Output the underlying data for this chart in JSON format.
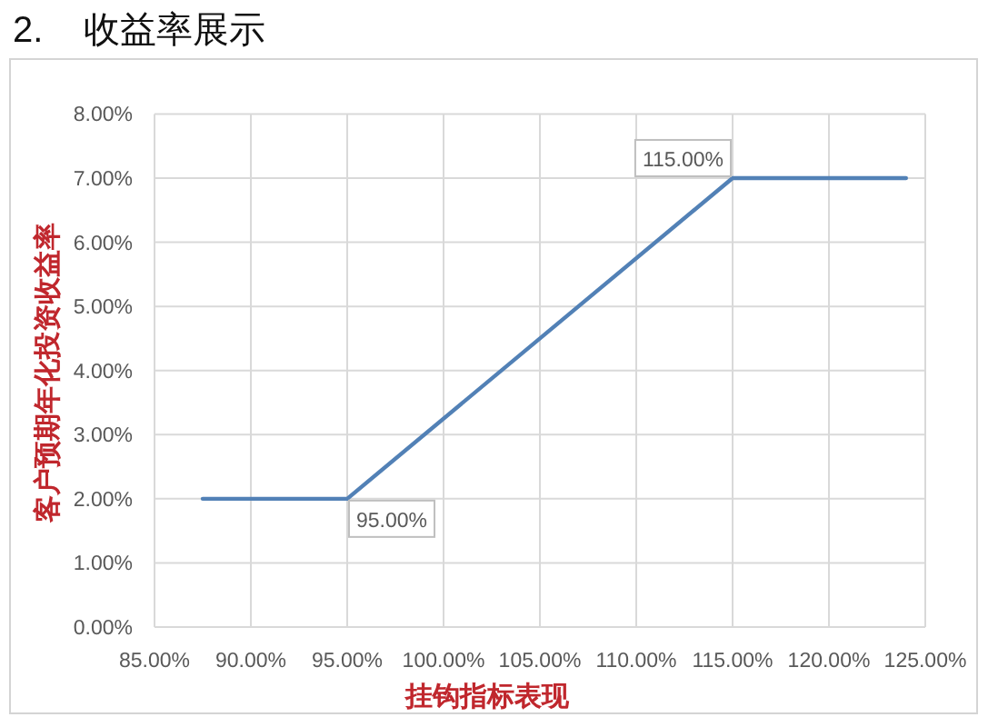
{
  "chart_data": {
    "type": "line",
    "title": "2.    收益率展示",
    "xlabel": "挂钩指标表现",
    "ylabel": "客户预期年化投资收益率",
    "x": [
      87.5,
      95,
      115,
      124
    ],
    "series": [
      {
        "color": "#5281b6",
        "values": [
          2,
          2,
          7,
          7
        ]
      }
    ],
    "xlim": [
      85,
      125
    ],
    "ylim": [
      0,
      8
    ],
    "xticks": [
      {
        "value": 85,
        "label": "85.00%"
      },
      {
        "value": 90,
        "label": "90.00%"
      },
      {
        "value": 95,
        "label": "95.00%"
      },
      {
        "value": 100,
        "label": "100.00%"
      },
      {
        "value": 105,
        "label": "105.00%"
      },
      {
        "value": 110,
        "label": "110.00%"
      },
      {
        "value": 115,
        "label": "115.00%"
      },
      {
        "value": 120,
        "label": "120.00%"
      },
      {
        "value": 125,
        "label": "125.00%"
      }
    ],
    "yticks": [
      {
        "value": 0,
        "label": "0.00%"
      },
      {
        "value": 1,
        "label": "1.00%"
      },
      {
        "value": 2,
        "label": "2.00%"
      },
      {
        "value": 3,
        "label": "3.00%"
      },
      {
        "value": 4,
        "label": "4.00%"
      },
      {
        "value": 5,
        "label": "5.00%"
      },
      {
        "value": 6,
        "label": "6.00%"
      },
      {
        "value": 7,
        "label": "7.00%"
      },
      {
        "value": 8,
        "label": "8.00%"
      }
    ],
    "grid": true,
    "line_style": "solid",
    "annotations": [
      {
        "text": "95.00%",
        "x": 95,
        "y": 2
      },
      {
        "text": "115.00%",
        "x": 115,
        "y": 7
      }
    ]
  }
}
